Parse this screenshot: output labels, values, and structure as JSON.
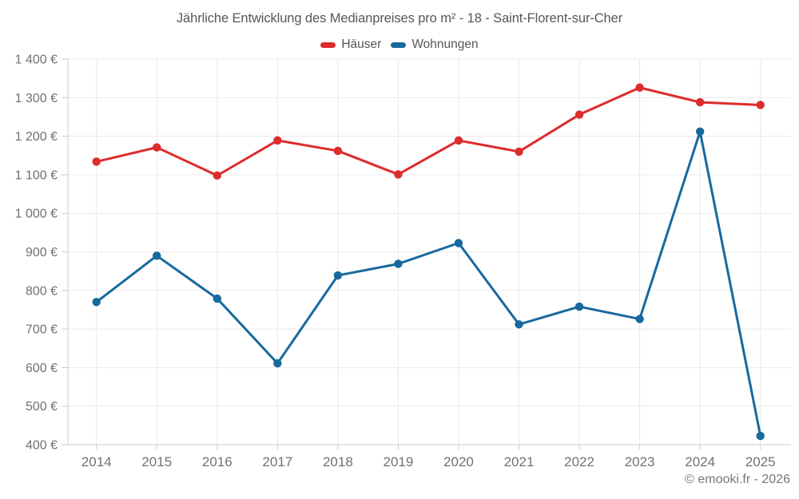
{
  "title": "Jährliche Entwicklung des Medianpreises pro m² - 18 - Saint-Florent-sur-Cher",
  "legend": {
    "items": [
      {
        "label": "Häuser",
        "color": "#dd2c2c"
      },
      {
        "label": "Wohnungen",
        "color": "#17699e"
      }
    ]
  },
  "footer": {
    "credit": "© emooki.fr - 2026"
  },
  "colors": {
    "grid": "#e9e9e9",
    "axis": "#cccccc",
    "tick_label": "#6f7275",
    "title_text": "#53575a",
    "hauser_red": "#dd2c2c",
    "wohnungen_blue": "#17699e",
    "background": "#ffffff"
  },
  "chart_data": {
    "type": "line",
    "title": "Jährliche Entwicklung des Medianpreises pro m² - 18 - Saint-Florent-sur-Cher",
    "x": [
      "2014",
      "2015",
      "2016",
      "2017",
      "2018",
      "2019",
      "2020",
      "2021",
      "2022",
      "2023",
      "2024",
      "2025"
    ],
    "series": [
      {
        "name": "Häuser",
        "color": "#dd2c2c",
        "values": [
          1134,
          1171,
          1098,
          1189,
          1162,
          1101,
          1189,
          1160,
          1256,
          1326,
          1288,
          1281
        ]
      },
      {
        "name": "Wohnungen",
        "color": "#17699e",
        "values": [
          770,
          890,
          779,
          611,
          839,
          869,
          923,
          712,
          758,
          726,
          1212,
          423
        ]
      }
    ],
    "xlabel": "",
    "ylabel": "",
    "ylim": [
      400,
      1400
    ],
    "ytick_step": 100,
    "ytick_labels": [
      "400 €",
      "500 €",
      "600 €",
      "700 €",
      "800 €",
      "900 €",
      "1 000 €",
      "1 100 €",
      "1 200 €",
      "1 300 €",
      "1 400 €"
    ],
    "unit": "€",
    "grid": true,
    "legend_position": "top"
  }
}
